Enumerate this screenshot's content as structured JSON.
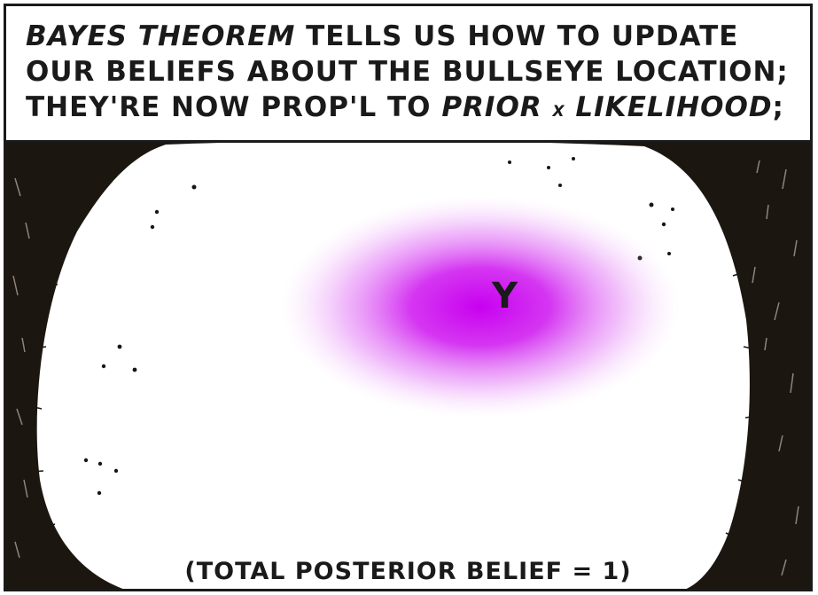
{
  "caption": {
    "line1_emph": "BAYES THEOREM",
    "line1_rest": " TELLS US HOW TO UPDATE",
    "line2": "OUR BELIEFS ABOUT THE BULLSEYE LOCATION;",
    "line3_a": "THEY'RE NOW PROP'L TO ",
    "line3_prior": "PRIOR",
    "line3_x": "x",
    "line3_likelihood": "LIKELIHOOD",
    "line3_end": ";"
  },
  "scene": {
    "observation_label": "Y",
    "footnote": "(TOTAL POSTERIOR BELIEF = 1)",
    "posterior_color": "#d000f0",
    "background_color": "#1c1610"
  }
}
